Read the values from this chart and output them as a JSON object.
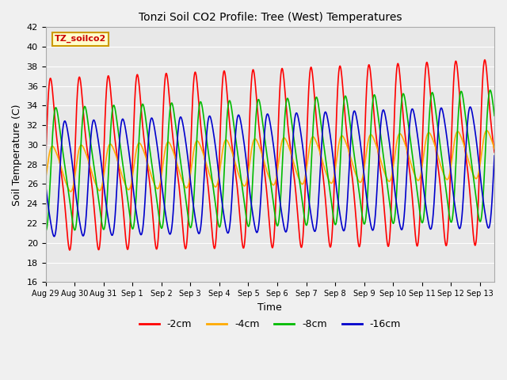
{
  "title": "Tonzi Soil CO2 Profile: Tree (West) Temperatures",
  "xlabel": "Time",
  "ylabel": "Soil Temperature (C)",
  "ylim": [
    16,
    42
  ],
  "yticks": [
    16,
    18,
    20,
    22,
    24,
    26,
    28,
    30,
    32,
    34,
    36,
    38,
    40,
    42
  ],
  "xtick_labels": [
    "Aug 29",
    "Aug 30",
    "Aug 31",
    "Sep 1",
    "Sep 2",
    "Sep 3",
    "Sep 4",
    "Sep 5",
    "Sep 6",
    "Sep 7",
    "Sep 8",
    "Sep 9",
    "Sep 10",
    "Sep 11",
    "Sep 12",
    "Sep 13"
  ],
  "legend_label": "TZ_soilco2",
  "legend_bg": "#ffffcc",
  "legend_border": "#cc9900",
  "series_labels": [
    "-2cm",
    "-4cm",
    "-8cm",
    "-16cm"
  ],
  "series_colors": [
    "#ff0000",
    "#ffaa00",
    "#00bb00",
    "#0000cc"
  ],
  "line_width": 1.2,
  "plot_bg": "#e8e8e8",
  "fig_bg": "#f0f0f0",
  "grid_color": "#ffffff",
  "n_days": 15.5,
  "params": {
    "-2cm": {
      "base": 28.0,
      "amp": 10.5,
      "phase": 0.0,
      "skew": 0.35,
      "amp_growth": 0.08,
      "trend": 0.08
    },
    "-4cm": {
      "base": 27.5,
      "amp": 2.8,
      "phase": 0.05,
      "skew": 0.2,
      "amp_growth": 0.04,
      "trend": 0.1
    },
    "-8cm": {
      "base": 27.5,
      "amp": 7.5,
      "phase": 0.18,
      "skew": 0.28,
      "amp_growth": 0.07,
      "trend": 0.09
    },
    "-16cm": {
      "base": 26.5,
      "amp": 7.0,
      "phase": 0.48,
      "skew": 0.2,
      "amp_growth": 0.06,
      "trend": 0.08
    }
  }
}
